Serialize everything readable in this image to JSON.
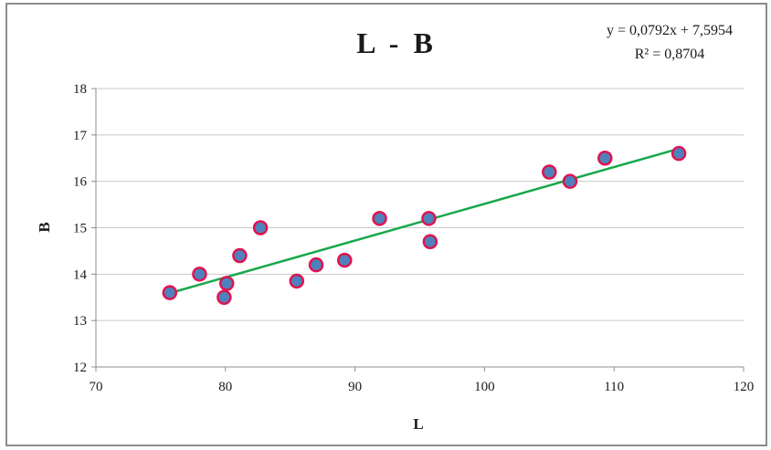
{
  "chart_data": {
    "type": "scatter",
    "title": "L  -  B",
    "xlabel": "L",
    "ylabel": "B",
    "xlim": [
      70,
      120
    ],
    "ylim": [
      12,
      18
    ],
    "x_ticks": [
      "70",
      "80",
      "90",
      "100",
      "110",
      "120"
    ],
    "y_ticks": [
      "12",
      "13",
      "14",
      "15",
      "16",
      "17",
      "18"
    ],
    "grid": "horizontal",
    "legend": "none",
    "points": [
      {
        "x": 75.7,
        "y": 13.6
      },
      {
        "x": 78.0,
        "y": 14.0
      },
      {
        "x": 79.9,
        "y": 13.5
      },
      {
        "x": 80.1,
        "y": 13.8
      },
      {
        "x": 81.1,
        "y": 14.4
      },
      {
        "x": 82.7,
        "y": 15.0
      },
      {
        "x": 85.5,
        "y": 13.85
      },
      {
        "x": 87.0,
        "y": 14.2
      },
      {
        "x": 89.2,
        "y": 14.3
      },
      {
        "x": 91.9,
        "y": 15.2
      },
      {
        "x": 95.7,
        "y": 15.2
      },
      {
        "x": 95.8,
        "y": 14.7
      },
      {
        "x": 105.0,
        "y": 16.2
      },
      {
        "x": 106.6,
        "y": 16.0
      },
      {
        "x": 109.3,
        "y": 16.5
      },
      {
        "x": 115.0,
        "y": 16.6
      }
    ],
    "trendline": {
      "type": "linear",
      "slope": 0.0792,
      "intercept": 7.5954,
      "x_range": [
        75.7,
        115.0
      ],
      "equation_label": "y = 0,0792x + 7,5954",
      "r2_label": "R² = 0,8704"
    },
    "colors": {
      "marker_fill": "#4f81bd",
      "marker_edge": "#e0134f",
      "trendline": "#17a84a",
      "grid": "#c8c8c8",
      "axis": "#8c8c8c"
    }
  }
}
